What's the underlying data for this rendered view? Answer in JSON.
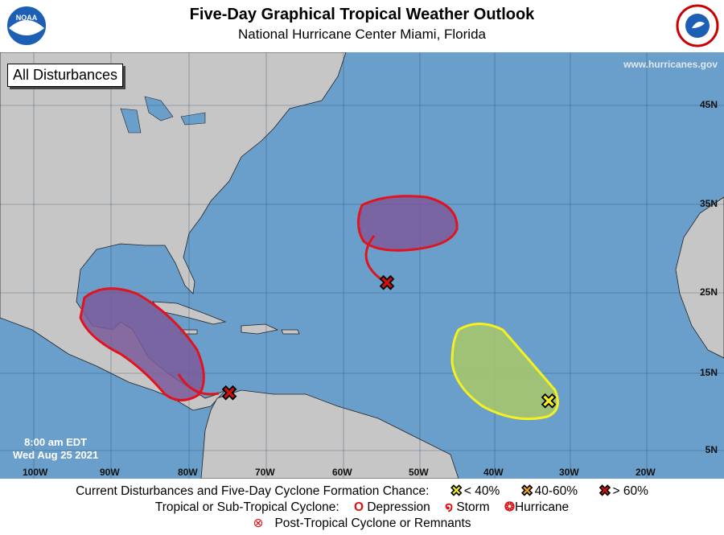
{
  "header": {
    "title": "Five-Day Graphical Tropical Weather Outlook",
    "subtitle": "National Hurricane Center  Miami, Florida",
    "left_logo": "NOAA",
    "right_logo": "National Weather Service"
  },
  "map": {
    "view_label": "All Disturbances",
    "website": "www.hurricanes.gov",
    "time": "8:00 am EDT",
    "date": "Wed Aug 25 2021",
    "lon_labels": [
      "100W",
      "90W",
      "80W",
      "70W",
      "60W",
      "50W",
      "40W",
      "30W",
      "20W"
    ],
    "lat_labels": [
      "45N",
      "35N",
      "25N",
      "15N",
      "5N"
    ],
    "colors": {
      "ocean": "#6a9fcb",
      "land": "#c6c6c6",
      "high": "#e0141e",
      "low": "#f5f020"
    },
    "disturbances": [
      {
        "chance": "> 60%",
        "color": "#e0141e",
        "region": "western Caribbean / Gulf of Mexico"
      },
      {
        "chance": "> 60%",
        "color": "#e0141e",
        "region": "central Atlantic"
      },
      {
        "chance": "< 40%",
        "color": "#f5f020",
        "region": "eastern tropical Atlantic"
      }
    ]
  },
  "legend": {
    "row1_label": "Current Disturbances and Five-Day Cyclone Formation Chance:",
    "low": "< 40%",
    "medium": "40-60%",
    "high": "> 60%",
    "row2_label": "Tropical or Sub-Tropical Cyclone:",
    "depression": "Depression",
    "storm": "Storm",
    "hurricane": "Hurricane",
    "post": "Post-Tropical Cyclone or Remnants"
  }
}
